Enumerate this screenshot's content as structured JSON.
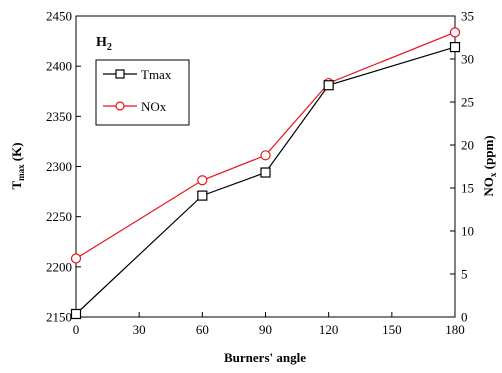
{
  "chart_data": {
    "type": "line",
    "title": "H",
    "title_subscript": "2",
    "xlabel": "Burners' angle",
    "ylabel_left": {
      "main": "T",
      "sub": "max",
      "unit": " (K)"
    },
    "ylabel_right": {
      "main": "NO",
      "sub": "x",
      "unit": " (ppm)"
    },
    "xlim": [
      0,
      180
    ],
    "ylim_left": [
      2150,
      2450
    ],
    "ylim_right": [
      0,
      35
    ],
    "x_ticks": [
      0,
      30,
      60,
      90,
      120,
      150,
      180
    ],
    "y_left_ticks": [
      2150,
      2200,
      2250,
      2300,
      2350,
      2400,
      2450
    ],
    "y_right_ticks": [
      0,
      5,
      10,
      15,
      20,
      25,
      30,
      35
    ],
    "grid": false,
    "legend_position": "upper-left",
    "series": [
      {
        "name": "Tmax",
        "axis": "left",
        "color": "#000000",
        "marker": "square",
        "x": [
          0,
          60,
          90,
          120,
          180
        ],
        "values": [
          2153,
          2271,
          2294,
          2381,
          2419
        ]
      },
      {
        "name": "NOx",
        "axis": "right",
        "color": "#e8141b",
        "marker": "circle",
        "x": [
          0,
          60,
          90,
          120,
          180
        ],
        "values": [
          6.8,
          15.9,
          18.8,
          27.2,
          33.1
        ]
      }
    ]
  }
}
